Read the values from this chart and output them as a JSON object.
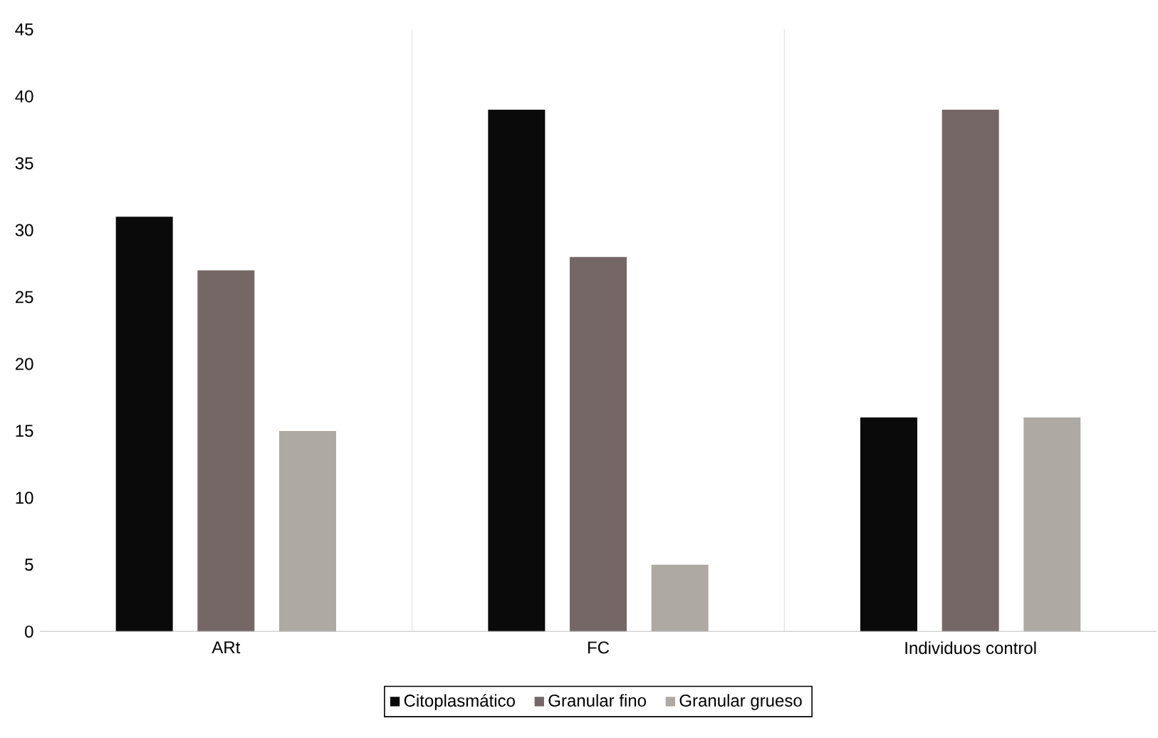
{
  "chart_data": {
    "type": "bar",
    "categories": [
      "ARt",
      "FC",
      "Individuos control"
    ],
    "series": [
      {
        "name": "Citoplasmático",
        "color": "#0a0a0a",
        "values": [
          31,
          39,
          16
        ]
      },
      {
        "name": "Granular fino",
        "color": "#756766",
        "values": [
          27,
          28,
          39
        ]
      },
      {
        "name": "Granular grueso",
        "color": "#aea9a3",
        "values": [
          15,
          5,
          16
        ]
      }
    ],
    "ylim": [
      0,
      45
    ],
    "yticks": [
      0,
      5,
      10,
      15,
      20,
      25,
      30,
      35,
      40,
      45
    ],
    "grid": "x",
    "legend": "bottom"
  }
}
